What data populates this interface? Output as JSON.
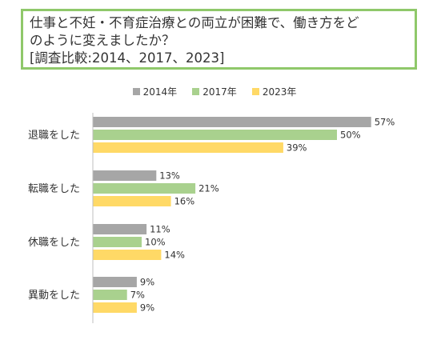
{
  "title": {
    "line1": "仕事と不妊・不育症治療との両立が困難で、働き方をど",
    "line2": "のように変えましたか？",
    "line3": "[調査比較:2014、2017、2023]"
  },
  "colors": {
    "border": "#8fc86a",
    "axis": "#bfbfbf"
  },
  "chart_data": {
    "type": "bar",
    "orientation": "horizontal",
    "categories": [
      "退職をした",
      "転職をした",
      "休職をした",
      "異動をした"
    ],
    "series": [
      {
        "name": "2014年",
        "color": "#a6a6a6",
        "values": [
          57,
          13,
          11,
          9
        ]
      },
      {
        "name": "2017年",
        "color": "#a9d18e",
        "values": [
          50,
          21,
          10,
          7
        ]
      },
      {
        "name": "2023年",
        "color": "#ffd966",
        "values": [
          39,
          16,
          14,
          9
        ]
      }
    ],
    "value_suffix": "%",
    "legend_position": "top",
    "grid": false
  }
}
